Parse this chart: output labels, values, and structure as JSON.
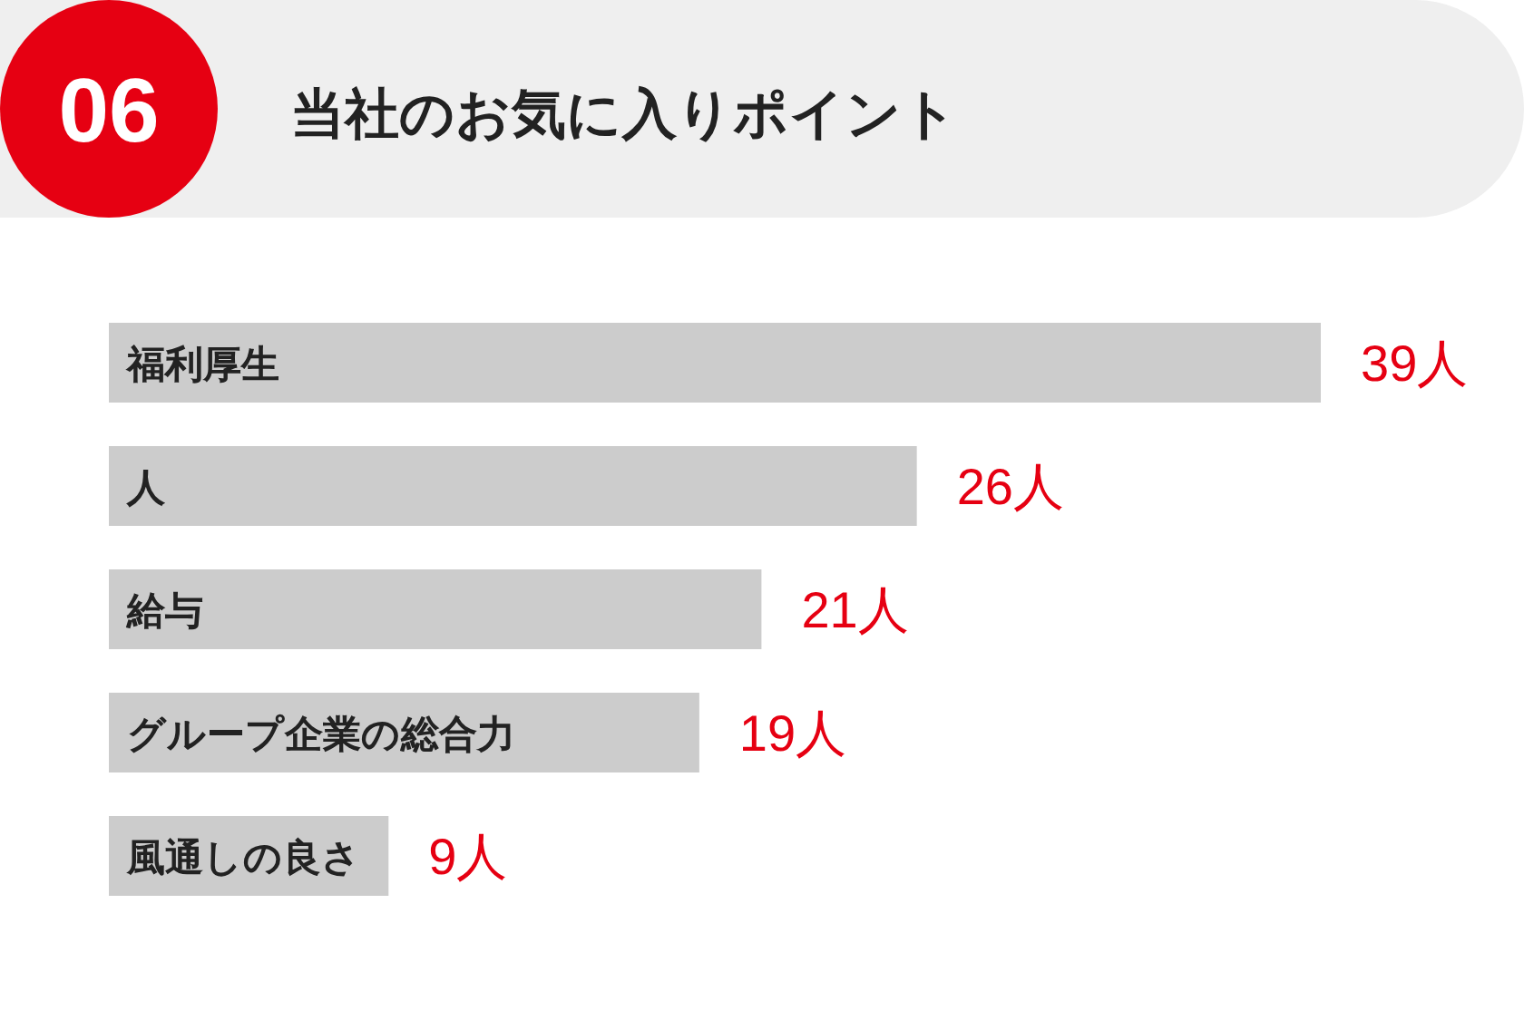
{
  "chart_data": {
    "type": "bar",
    "orientation": "horizontal",
    "title": "当社のお気に入りポイント",
    "annotations": [
      "06"
    ],
    "categories": [
      "福利厚生",
      "人",
      "給与",
      "グループ企業の総合力",
      "風通しの良さ"
    ],
    "values": [
      39,
      26,
      21,
      19,
      9
    ],
    "value_labels": [
      "39人",
      "26人",
      "21人",
      "19人",
      "9人"
    ],
    "color": "#cccccc"
  }
}
